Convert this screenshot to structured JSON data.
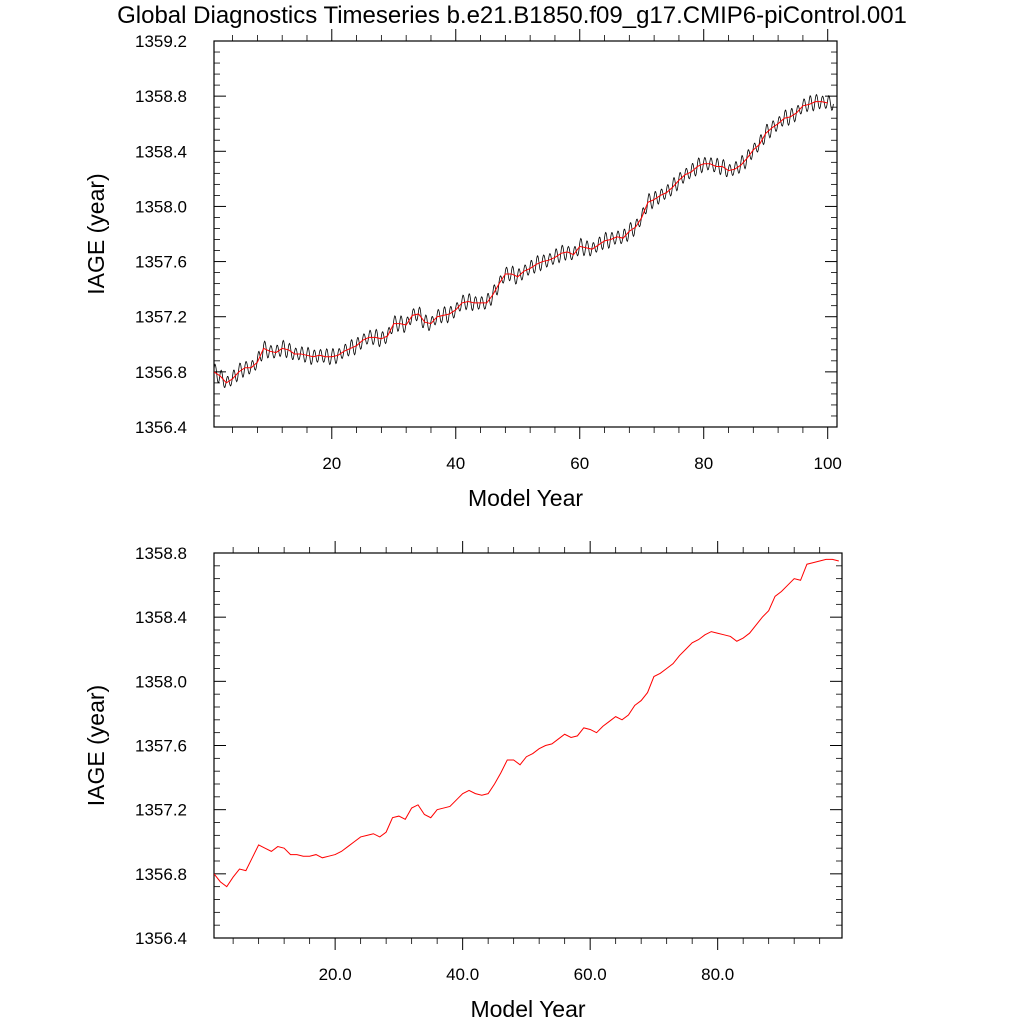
{
  "title": "Global Diagnostics Timeseries b.e21.B1850.f09_g17.CMIP6-piControl.001",
  "colors": {
    "monthly": "#000000",
    "annual": "#ff0000",
    "axes": "#000000"
  },
  "chart_data": [
    {
      "type": "line",
      "xlabel": "Model Year",
      "ylabel": "IAGE (year)",
      "xlim": [
        1,
        101.5
      ],
      "ylim": [
        1356.4,
        1359.2
      ],
      "x_ticks": [
        20,
        40,
        60,
        80,
        100
      ],
      "x_tick_labels": [
        "20",
        "40",
        "60",
        "80",
        "100"
      ],
      "y_ticks": [
        1356.4,
        1356.8,
        1357.2,
        1357.6,
        1358.0,
        1358.4,
        1358.8,
        1359.2
      ],
      "y_tick_labels": [
        "1356.4",
        "1356.8",
        "1357.2",
        "1357.6",
        "1358.0",
        "1358.4",
        "1358.8",
        "1359.2"
      ],
      "grid": false,
      "legend": "none",
      "series": [
        {
          "kind": "monthly",
          "seasonal_amplitude": 0.06,
          "x_start": 1.0,
          "x_step": 0.0833,
          "base": [
            1356.8,
            1356.77,
            1356.72,
            1356.75,
            1356.8,
            1356.83,
            1356.83,
            1356.87,
            1356.97,
            1356.95,
            1356.94,
            1356.97,
            1356.96,
            1356.93,
            1356.93,
            1356.92,
            1356.91,
            1356.92,
            1356.91,
            1356.91,
            1356.92,
            1356.95,
            1356.97,
            1356.99,
            1357.03,
            1357.05,
            1357.05,
            1357.04,
            1357.06,
            1357.15,
            1357.15,
            1357.14,
            1357.21,
            1357.22,
            1357.16,
            1357.15,
            1357.2,
            1357.21,
            1357.22,
            1357.25,
            1357.3,
            1357.31,
            1357.3,
            1357.3,
            1357.3,
            1357.36,
            1357.44,
            1357.51,
            1357.51,
            1357.49,
            1357.53,
            1357.55,
            1357.58,
            1357.6,
            1357.61,
            1357.63,
            1357.66,
            1357.67,
            1357.65,
            1357.71,
            1357.7,
            1357.69,
            1357.72,
            1357.75,
            1357.76,
            1357.78,
            1357.77,
            1357.82,
            1357.85,
            1357.92,
            1358.03,
            1358.05,
            1358.08,
            1358.1,
            1358.14,
            1358.19,
            1358.23,
            1358.25,
            1358.29,
            1358.31,
            1358.31,
            1358.29,
            1358.29,
            1358.26,
            1358.27,
            1358.3,
            1358.35,
            1358.41,
            1358.45,
            1358.53,
            1358.57,
            1358.6,
            1358.64,
            1358.65,
            1358.68,
            1358.73,
            1358.74,
            1358.76,
            1358.76,
            1358.75
          ]
        },
        {
          "kind": "annual",
          "x": [
            1,
            2,
            3,
            4,
            5,
            6,
            7,
            8,
            9,
            10,
            11,
            12,
            13,
            14,
            15,
            16,
            17,
            18,
            19,
            20,
            21,
            22,
            23,
            24,
            25,
            26,
            27,
            28,
            29,
            30,
            31,
            32,
            33,
            34,
            35,
            36,
            37,
            38,
            39,
            40,
            41,
            42,
            43,
            44,
            45,
            46,
            47,
            48,
            49,
            50,
            51,
            52,
            53,
            54,
            55,
            56,
            57,
            58,
            59,
            60,
            61,
            62,
            63,
            64,
            65,
            66,
            67,
            68,
            69,
            70,
            71,
            72,
            73,
            74,
            75,
            76,
            77,
            78,
            79,
            80,
            81,
            82,
            83,
            84,
            85,
            86,
            87,
            88,
            89,
            90,
            91,
            92,
            93,
            94,
            95,
            96,
            97,
            98,
            99,
            100
          ],
          "y": [
            1356.8,
            1356.77,
            1356.72,
            1356.75,
            1356.8,
            1356.83,
            1356.83,
            1356.87,
            1356.97,
            1356.95,
            1356.94,
            1356.97,
            1356.96,
            1356.93,
            1356.93,
            1356.92,
            1356.91,
            1356.92,
            1356.91,
            1356.91,
            1356.92,
            1356.95,
            1356.97,
            1356.99,
            1357.03,
            1357.05,
            1357.05,
            1357.04,
            1357.06,
            1357.15,
            1357.15,
            1357.14,
            1357.21,
            1357.22,
            1357.16,
            1357.15,
            1357.2,
            1357.21,
            1357.22,
            1357.25,
            1357.3,
            1357.31,
            1357.3,
            1357.3,
            1357.3,
            1357.36,
            1357.44,
            1357.51,
            1357.51,
            1357.49,
            1357.53,
            1357.55,
            1357.58,
            1357.6,
            1357.61,
            1357.63,
            1357.66,
            1357.67,
            1357.65,
            1357.71,
            1357.7,
            1357.69,
            1357.72,
            1357.75,
            1357.76,
            1357.78,
            1357.77,
            1357.82,
            1357.85,
            1357.92,
            1358.03,
            1358.05,
            1358.08,
            1358.1,
            1358.14,
            1358.19,
            1358.23,
            1358.25,
            1358.29,
            1358.31,
            1358.31,
            1358.29,
            1358.29,
            1358.26,
            1358.27,
            1358.3,
            1358.35,
            1358.41,
            1358.45,
            1358.53,
            1358.57,
            1358.6,
            1358.64,
            1358.65,
            1358.68,
            1358.73,
            1358.74,
            1358.76,
            1358.76,
            1358.75
          ]
        }
      ]
    },
    {
      "type": "line",
      "xlabel": "Model Year",
      "ylabel": "IAGE (year)",
      "xlim": [
        1,
        99.5
      ],
      "ylim": [
        1356.4,
        1358.8
      ],
      "x_ticks": [
        20,
        40,
        60,
        80
      ],
      "x_tick_labels": [
        "20.0",
        "40.0",
        "60.0",
        "80.0"
      ],
      "y_ticks": [
        1356.4,
        1356.8,
        1357.2,
        1357.6,
        1358.0,
        1358.4,
        1358.8
      ],
      "y_tick_labels": [
        "1356.4",
        "1356.8",
        "1357.2",
        "1357.6",
        "1358.0",
        "1358.4",
        "1358.8"
      ],
      "grid": false,
      "legend": "none",
      "series": [
        {
          "kind": "annual",
          "x": [
            1,
            2,
            3,
            4,
            5,
            6,
            7,
            8,
            9,
            10,
            11,
            12,
            13,
            14,
            15,
            16,
            17,
            18,
            19,
            20,
            21,
            22,
            23,
            24,
            25,
            26,
            27,
            28,
            29,
            30,
            31,
            32,
            33,
            34,
            35,
            36,
            37,
            38,
            39,
            40,
            41,
            42,
            43,
            44,
            45,
            46,
            47,
            48,
            49,
            50,
            51,
            52,
            53,
            54,
            55,
            56,
            57,
            58,
            59,
            60,
            61,
            62,
            63,
            64,
            65,
            66,
            67,
            68,
            69,
            70,
            71,
            72,
            73,
            74,
            75,
            76,
            77,
            78,
            79,
            80,
            81,
            82,
            83,
            84,
            85,
            86,
            87,
            88,
            89,
            90,
            91,
            92,
            93,
            94,
            95,
            96,
            97,
            98,
            99
          ],
          "y": [
            1356.8,
            1356.75,
            1356.72,
            1356.78,
            1356.83,
            1356.82,
            1356.9,
            1356.98,
            1356.96,
            1356.94,
            1356.97,
            1356.96,
            1356.92,
            1356.92,
            1356.91,
            1356.91,
            1356.92,
            1356.9,
            1356.91,
            1356.92,
            1356.94,
            1356.97,
            1357.0,
            1357.03,
            1357.04,
            1357.05,
            1357.03,
            1357.06,
            1357.15,
            1357.16,
            1357.14,
            1357.21,
            1357.23,
            1357.17,
            1357.15,
            1357.2,
            1357.21,
            1357.22,
            1357.26,
            1357.3,
            1357.32,
            1357.3,
            1357.29,
            1357.3,
            1357.36,
            1357.43,
            1357.51,
            1357.51,
            1357.48,
            1357.53,
            1357.55,
            1357.58,
            1357.6,
            1357.61,
            1357.64,
            1357.67,
            1357.65,
            1357.66,
            1357.71,
            1357.7,
            1357.68,
            1357.72,
            1357.75,
            1357.78,
            1357.76,
            1357.79,
            1357.85,
            1357.88,
            1357.93,
            1358.03,
            1358.05,
            1358.08,
            1358.11,
            1358.16,
            1358.2,
            1358.24,
            1358.26,
            1358.29,
            1358.31,
            1358.3,
            1358.29,
            1358.28,
            1358.25,
            1358.27,
            1358.3,
            1358.35,
            1358.4,
            1358.44,
            1358.53,
            1358.56,
            1358.6,
            1358.64,
            1358.63,
            1358.73,
            1358.74,
            1358.75,
            1358.76,
            1358.76,
            1358.75
          ]
        }
      ]
    }
  ]
}
